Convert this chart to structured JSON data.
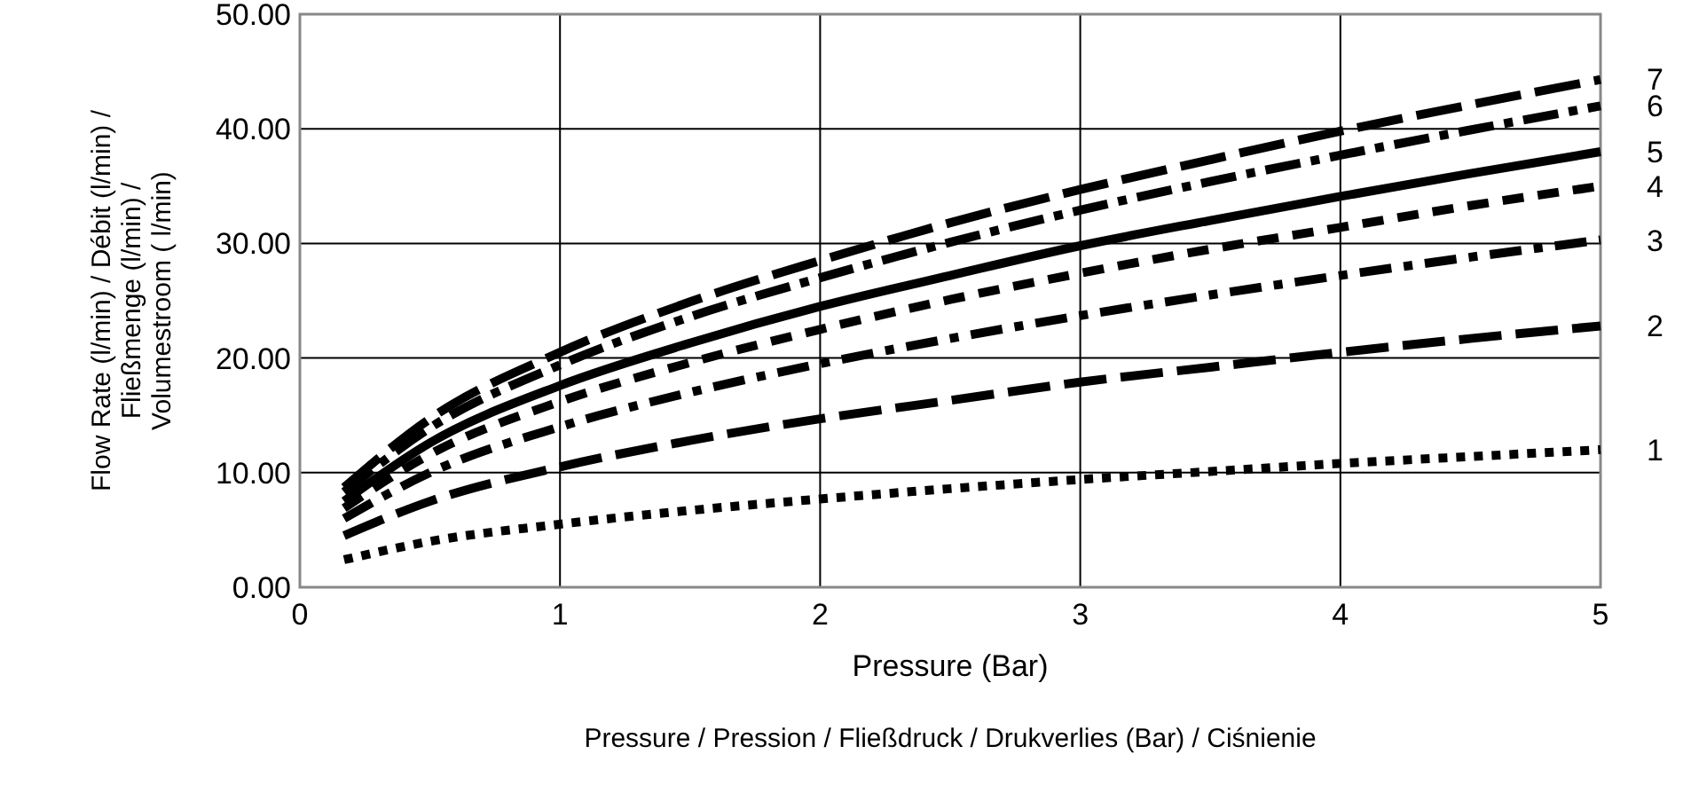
{
  "chart_data": {
    "type": "line",
    "xlabel": "Pressure (Bar)",
    "ylabel": "Flow Rate (l/min) / Débit (l/min) /\nFließmenge (l/min) /\nVolumestroom ( l/min)",
    "annotations": [
      "Pressure / Pression / Fließdruck / Drukverlies (Bar) / Ciśnienie"
    ],
    "x": [
      0.17,
      0.5,
      1,
      1.5,
      2,
      2.5,
      3,
      3.5,
      4,
      4.5,
      5
    ],
    "xlim": [
      0,
      5
    ],
    "xticks": [
      0,
      1,
      2,
      3,
      4,
      5
    ],
    "ylim": [
      0,
      50
    ],
    "yticks": [
      {
        "value": 0,
        "label": "0.00"
      },
      {
        "value": 10,
        "label": "10.00"
      },
      {
        "value": 20,
        "label": "20.00"
      },
      {
        "value": 30,
        "label": "30.00"
      },
      {
        "value": 40,
        "label": "40.00"
      },
      {
        "value": 50,
        "label": "50.00"
      }
    ],
    "grid": true,
    "legend": false,
    "series": [
      {
        "name": "1",
        "color": "#000000",
        "line_style": "dotted",
        "values": [
          2.4,
          4.0,
          5.5,
          6.7,
          7.7,
          8.6,
          9.4,
          10.1,
          10.8,
          11.4,
          12.0
        ]
      },
      {
        "name": "2",
        "color": "#000000",
        "line_style": "dashed",
        "values": [
          4.5,
          7.5,
          10.5,
          12.8,
          14.7,
          16.3,
          17.9,
          19.2,
          20.5,
          21.7,
          22.8
        ]
      },
      {
        "name": "3",
        "color": "#000000",
        "line_style": "dashed",
        "values": [
          6.0,
          10.0,
          14.0,
          17.0,
          19.5,
          21.7,
          23.7,
          25.5,
          27.2,
          28.8,
          30.3
        ]
      },
      {
        "name": "4",
        "color": "#000000",
        "line_style": "dashed",
        "values": [
          6.9,
          11.6,
          16.2,
          19.6,
          22.5,
          25.1,
          27.4,
          29.5,
          31.4,
          33.3,
          35.0
        ]
      },
      {
        "name": "5",
        "color": "#000000",
        "line_style": "solid",
        "values": [
          7.5,
          12.6,
          17.6,
          21.3,
          24.5,
          27.2,
          29.8,
          32.0,
          34.1,
          36.1,
          38.0
        ]
      },
      {
        "name": "6",
        "color": "#000000",
        "line_style": "dashed",
        "values": [
          8.3,
          13.9,
          19.4,
          23.6,
          27.0,
          30.1,
          32.9,
          35.4,
          37.7,
          39.9,
          42.0
        ]
      },
      {
        "name": "7",
        "color": "#000000",
        "line_style": "dashed",
        "values": [
          8.7,
          14.7,
          20.5,
          24.9,
          28.5,
          31.8,
          34.7,
          37.3,
          39.8,
          42.1,
          44.3
        ]
      }
    ]
  }
}
